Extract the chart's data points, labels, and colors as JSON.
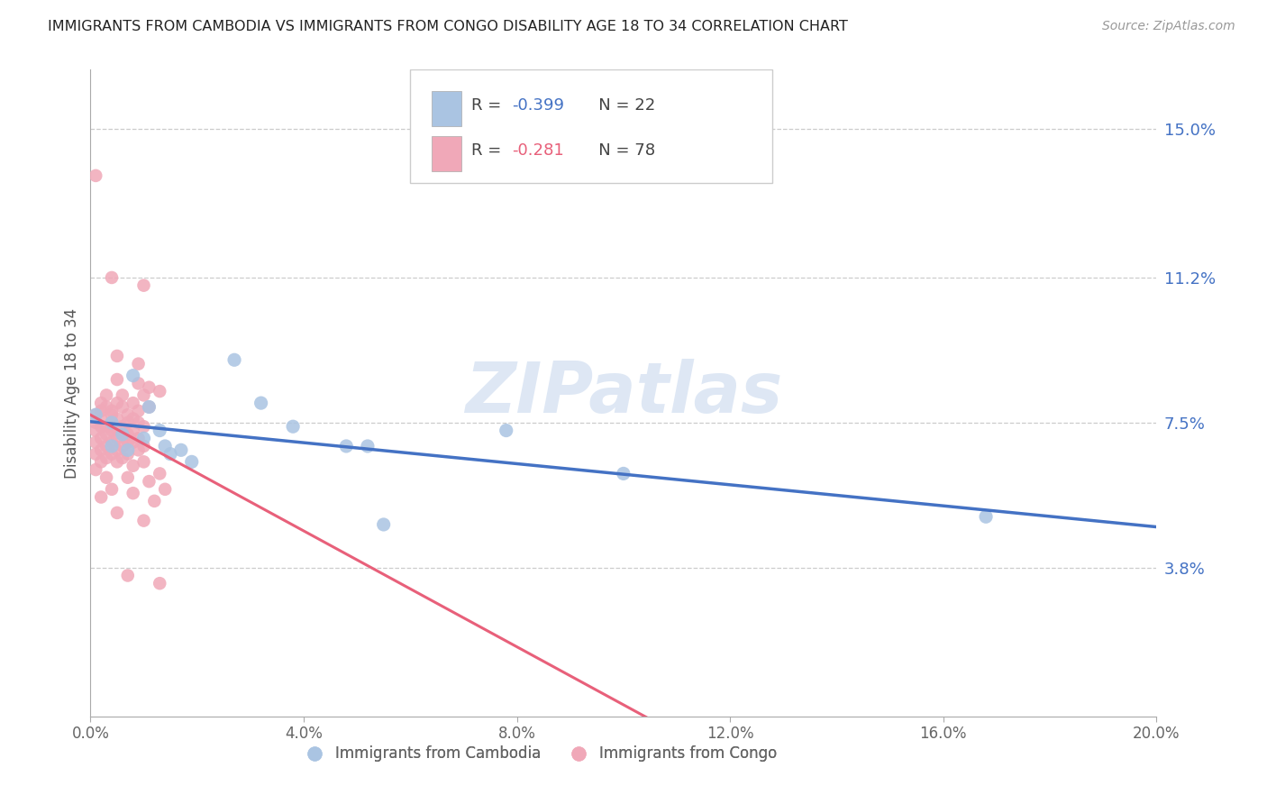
{
  "title": "IMMIGRANTS FROM CAMBODIA VS IMMIGRANTS FROM CONGO DISABILITY AGE 18 TO 34 CORRELATION CHART",
  "source": "Source: ZipAtlas.com",
  "ylabel": "Disability Age 18 to 34",
  "xlim": [
    0.0,
    0.2
  ],
  "ylim": [
    0.0,
    0.165
  ],
  "xticks": [
    0.0,
    0.04,
    0.08,
    0.12,
    0.16,
    0.2
  ],
  "ytick_positions": [
    0.038,
    0.075,
    0.112,
    0.15
  ],
  "ytick_labels": [
    "3.8%",
    "7.5%",
    "11.2%",
    "15.0%"
  ],
  "xtick_labels": [
    "0.0%",
    "4.0%",
    "8.0%",
    "12.0%",
    "16.0%",
    "20.0%"
  ],
  "grid_color": "#cccccc",
  "background_color": "#ffffff",
  "watermark": "ZIPatlas",
  "legend_r_cambodia": "R = -0.399",
  "legend_n_cambodia": "N = 22",
  "legend_r_congo": "R = -0.281",
  "legend_n_congo": "N = 78",
  "cambodia_color": "#aac4e2",
  "congo_color": "#f0a8b8",
  "cambodia_line_color": "#4472c4",
  "congo_line_color": "#e8607a",
  "congo_line_solid_xmax": 0.135,
  "cambodia_scatter": [
    [
      0.001,
      0.077
    ],
    [
      0.004,
      0.075
    ],
    [
      0.004,
      0.069
    ],
    [
      0.006,
      0.072
    ],
    [
      0.007,
      0.068
    ],
    [
      0.008,
      0.087
    ],
    [
      0.01,
      0.071
    ],
    [
      0.011,
      0.079
    ],
    [
      0.013,
      0.073
    ],
    [
      0.014,
      0.069
    ],
    [
      0.015,
      0.067
    ],
    [
      0.017,
      0.068
    ],
    [
      0.019,
      0.065
    ],
    [
      0.027,
      0.091
    ],
    [
      0.032,
      0.08
    ],
    [
      0.038,
      0.074
    ],
    [
      0.048,
      0.069
    ],
    [
      0.052,
      0.069
    ],
    [
      0.055,
      0.049
    ],
    [
      0.078,
      0.073
    ],
    [
      0.1,
      0.062
    ],
    [
      0.168,
      0.051
    ]
  ],
  "congo_scatter": [
    [
      0.001,
      0.138
    ],
    [
      0.004,
      0.112
    ],
    [
      0.01,
      0.11
    ],
    [
      0.005,
      0.092
    ],
    [
      0.009,
      0.09
    ],
    [
      0.005,
      0.086
    ],
    [
      0.009,
      0.085
    ],
    [
      0.011,
      0.084
    ],
    [
      0.003,
      0.082
    ],
    [
      0.006,
      0.082
    ],
    [
      0.01,
      0.082
    ],
    [
      0.013,
      0.083
    ],
    [
      0.002,
      0.08
    ],
    [
      0.005,
      0.08
    ],
    [
      0.008,
      0.08
    ],
    [
      0.011,
      0.079
    ],
    [
      0.003,
      0.079
    ],
    [
      0.006,
      0.079
    ],
    [
      0.009,
      0.078
    ],
    [
      0.002,
      0.078
    ],
    [
      0.004,
      0.078
    ],
    [
      0.007,
      0.077
    ],
    [
      0.001,
      0.077
    ],
    [
      0.004,
      0.077
    ],
    [
      0.008,
      0.076
    ],
    [
      0.002,
      0.076
    ],
    [
      0.005,
      0.076
    ],
    [
      0.009,
      0.075
    ],
    [
      0.001,
      0.075
    ],
    [
      0.004,
      0.075
    ],
    [
      0.007,
      0.075
    ],
    [
      0.003,
      0.074
    ],
    [
      0.006,
      0.074
    ],
    [
      0.01,
      0.074
    ],
    [
      0.002,
      0.074
    ],
    [
      0.005,
      0.073
    ],
    [
      0.008,
      0.073
    ],
    [
      0.001,
      0.073
    ],
    [
      0.004,
      0.073
    ],
    [
      0.007,
      0.072
    ],
    [
      0.003,
      0.072
    ],
    [
      0.006,
      0.072
    ],
    [
      0.009,
      0.071
    ],
    [
      0.002,
      0.071
    ],
    [
      0.005,
      0.071
    ],
    [
      0.008,
      0.07
    ],
    [
      0.001,
      0.07
    ],
    [
      0.004,
      0.07
    ],
    [
      0.007,
      0.07
    ],
    [
      0.003,
      0.069
    ],
    [
      0.006,
      0.069
    ],
    [
      0.01,
      0.069
    ],
    [
      0.002,
      0.068
    ],
    [
      0.005,
      0.068
    ],
    [
      0.009,
      0.068
    ],
    [
      0.001,
      0.067
    ],
    [
      0.004,
      0.067
    ],
    [
      0.007,
      0.067
    ],
    [
      0.003,
      0.066
    ],
    [
      0.006,
      0.066
    ],
    [
      0.01,
      0.065
    ],
    [
      0.002,
      0.065
    ],
    [
      0.005,
      0.065
    ],
    [
      0.008,
      0.064
    ],
    [
      0.001,
      0.063
    ],
    [
      0.013,
      0.062
    ],
    [
      0.003,
      0.061
    ],
    [
      0.007,
      0.061
    ],
    [
      0.011,
      0.06
    ],
    [
      0.004,
      0.058
    ],
    [
      0.008,
      0.057
    ],
    [
      0.014,
      0.058
    ],
    [
      0.002,
      0.056
    ],
    [
      0.012,
      0.055
    ],
    [
      0.005,
      0.052
    ],
    [
      0.01,
      0.05
    ],
    [
      0.007,
      0.036
    ],
    [
      0.013,
      0.034
    ]
  ]
}
